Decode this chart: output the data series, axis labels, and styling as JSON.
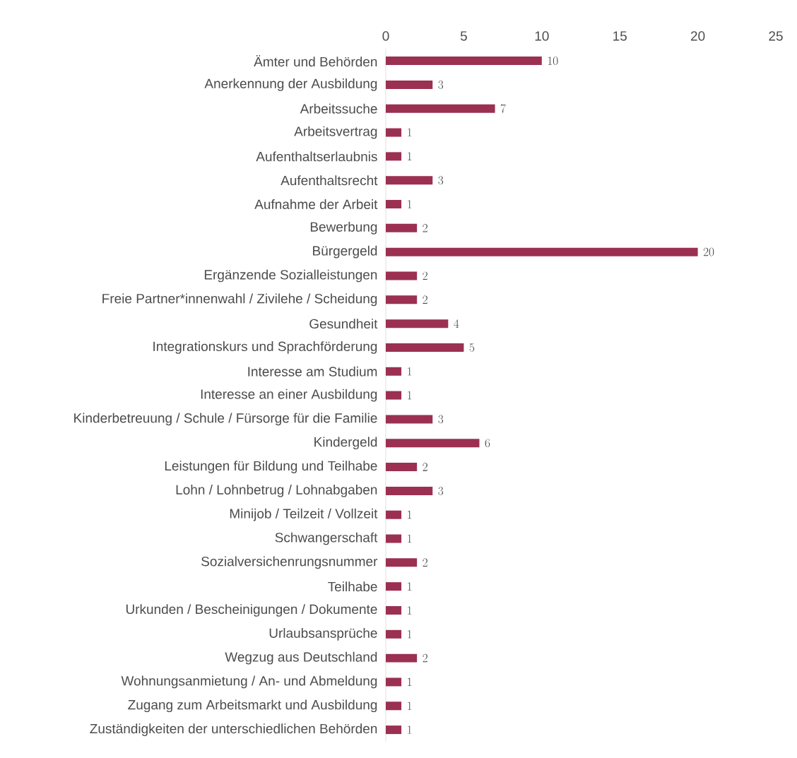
{
  "chart_data": {
    "type": "bar",
    "orientation": "horizontal",
    "color": "#9b3052",
    "categories": [
      "Ämter und Behörden",
      "Anerkennung der Ausbildung",
      "Arbeitssuche",
      "Arbeitsvertrag",
      "Aufenthaltserlaubnis",
      "Aufenthaltsrecht",
      "Aufnahme der Arbeit",
      "Bewerbung",
      "Bürgergeld",
      "Ergänzende Sozialleistungen",
      "Freie Partner*innenwahl / Zivilehe / Scheidung",
      "Gesundheit",
      "Integrationskurs und Sprachförderung",
      "Interesse am Studium",
      "Interesse an einer Ausbildung",
      "Kinderbetreuung / Schule / Fürsorge für die Familie",
      "Kindergeld",
      "Leistungen für Bildung und Teilhabe",
      "Lohn / Lohnbetrug / Lohnabgaben",
      "Minijob / Teilzeit / Vollzeit",
      "Schwangerschaft",
      "Sozialversichenrungsnummer",
      "Teilhabe",
      "Urkunden / Bescheinigungen / Dokumente",
      "Urlaubsansprüche",
      "Wegzug aus Deutschland",
      "Wohnungsanmietung / An- und Abmeldung",
      "Zugang zum Arbeitsmarkt und Ausbildung",
      "Zuständigkeiten der unterschiedlichen Behörden"
    ],
    "values": [
      10,
      3,
      7,
      1,
      1,
      3,
      1,
      2,
      20,
      2,
      2,
      4,
      5,
      1,
      1,
      3,
      6,
      2,
      3,
      1,
      1,
      2,
      1,
      1,
      1,
      2,
      1,
      1,
      1
    ],
    "xlim": [
      0,
      25
    ],
    "xticks": [
      0,
      5,
      10,
      15,
      20,
      25
    ],
    "grid": false,
    "legend": false,
    "data_labels": true
  }
}
